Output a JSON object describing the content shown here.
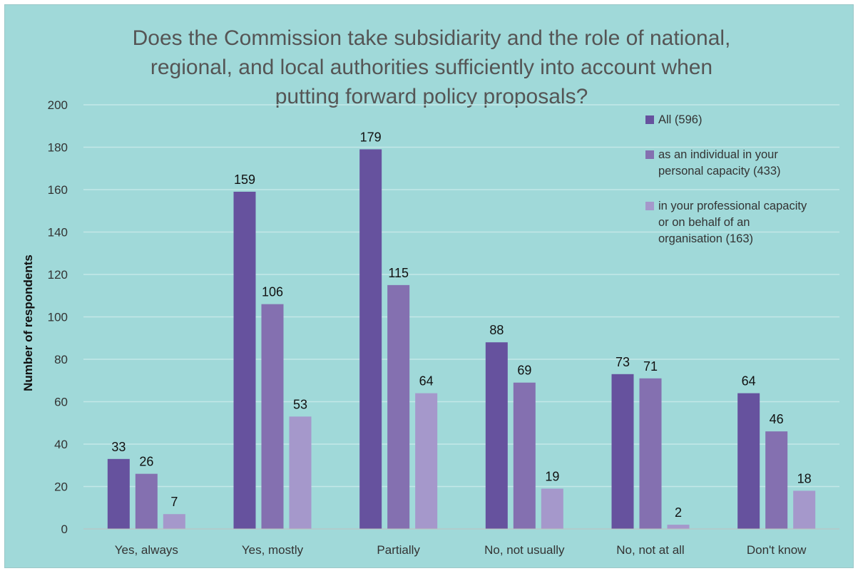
{
  "chart_data": {
    "type": "bar",
    "title_lines": [
      "Does the Commission take subsidiarity and the role of national,",
      "regional, and local authorities sufficiently into account when",
      "putting forward policy proposals?"
    ],
    "xlabel": "",
    "ylabel": "Number of respondents",
    "ylim": [
      0,
      200
    ],
    "yticks": [
      "0",
      "20",
      "40",
      "60",
      "80",
      "100",
      "120",
      "140",
      "160",
      "180",
      "200"
    ],
    "grid": true,
    "legend_position": "right",
    "categories": [
      "Yes, always",
      "Yes, mostly",
      "Partially",
      "No, not usually",
      "No, not at all",
      "Don't know"
    ],
    "series": [
      {
        "name": "All  (596)",
        "legend_lines": [
          "All  (596)"
        ],
        "color": "#66529e",
        "values": [
          33,
          159,
          179,
          88,
          73,
          64
        ],
        "labels": [
          "33",
          "159",
          "179",
          "88",
          "73",
          "64"
        ]
      },
      {
        "name": "as an individual in your personal capacity  (433)",
        "legend_lines": [
          "as an individual in your",
          "personal capacity  (433)"
        ],
        "color": "#8470b0",
        "values": [
          26,
          106,
          115,
          69,
          71,
          46
        ],
        "labels": [
          "26",
          "106",
          "115",
          "69",
          "71",
          "46"
        ]
      },
      {
        "name": "in your professional capacity or on behalf of an organisation  (163)",
        "legend_lines": [
          "in your professional capacity",
          "or on behalf of an",
          "organisation  (163)"
        ],
        "color": "#a598cb",
        "values": [
          7,
          53,
          64,
          19,
          2,
          18
        ],
        "labels": [
          "7",
          "53",
          "64",
          "19",
          "2",
          "18"
        ]
      }
    ],
    "colors": {
      "background": "#a0d9d9",
      "gridline": "#c4e8e8"
    }
  }
}
